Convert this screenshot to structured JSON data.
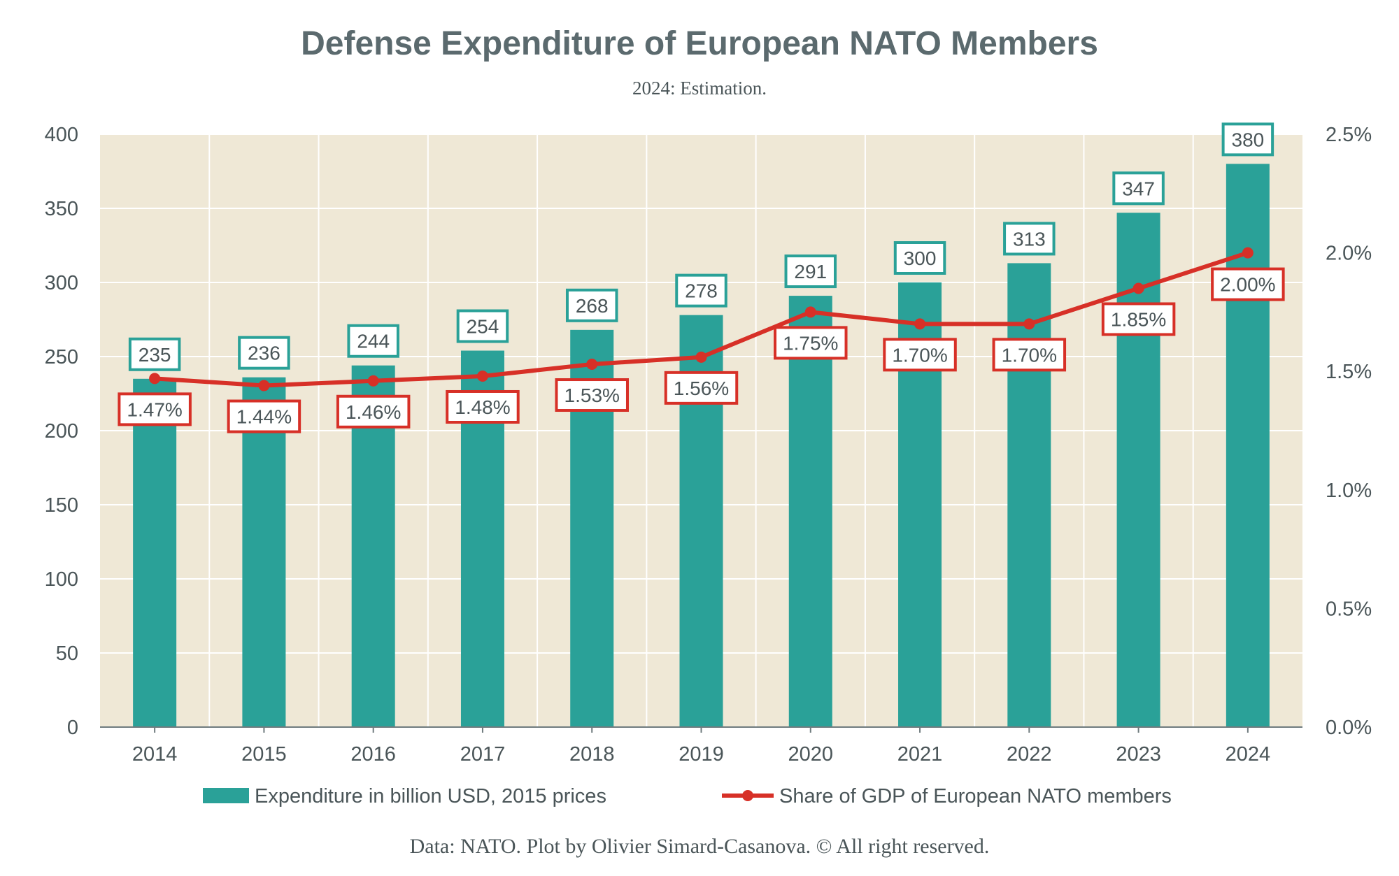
{
  "chart_data": {
    "type": "bar",
    "title": "Defense Expenditure of European NATO Members",
    "subtitle": "2024: Estimation.",
    "categories": [
      "2014",
      "2015",
      "2016",
      "2017",
      "2018",
      "2019",
      "2020",
      "2021",
      "2022",
      "2023",
      "2024"
    ],
    "series": [
      {
        "name": "Expenditure in billion USD, 2015 prices",
        "type": "bar",
        "axis": "left",
        "values": [
          235,
          236,
          244,
          254,
          268,
          278,
          291,
          300,
          313,
          347,
          380
        ],
        "labels": [
          "235",
          "236",
          "244",
          "254",
          "268",
          "278",
          "291",
          "300",
          "313",
          "347",
          "380"
        ]
      },
      {
        "name": "Share of GDP of European NATO members",
        "type": "line",
        "axis": "right",
        "values": [
          1.47,
          1.44,
          1.46,
          1.48,
          1.53,
          1.56,
          1.75,
          1.7,
          1.7,
          1.85,
          2.0
        ],
        "labels": [
          "1.47%",
          "1.44%",
          "1.46%",
          "1.48%",
          "1.53%",
          "1.56%",
          "1.75%",
          "1.70%",
          "1.70%",
          "1.85%",
          "2.00%"
        ]
      }
    ],
    "y_left": {
      "ylim": [
        0,
        400
      ],
      "ticks": [
        "0",
        "50",
        "100",
        "150",
        "200",
        "250",
        "300",
        "350",
        "400"
      ]
    },
    "y_right": {
      "ylim": [
        0,
        2.5
      ],
      "ticks": [
        "0.0%",
        "0.5%",
        "1.0%",
        "1.5%",
        "2.0%",
        "2.5%"
      ]
    },
    "grid": true,
    "legend": "bottom",
    "caption": "Data: NATO. Plot by Olivier Simard-Casanova. © All right reserved.",
    "colors": {
      "bar": "#2aa198",
      "line": "#d73027",
      "plot_background": "#efe8d6",
      "grid": "#ffffff",
      "text": "#4a5558",
      "title": "#5b6a6e"
    }
  }
}
